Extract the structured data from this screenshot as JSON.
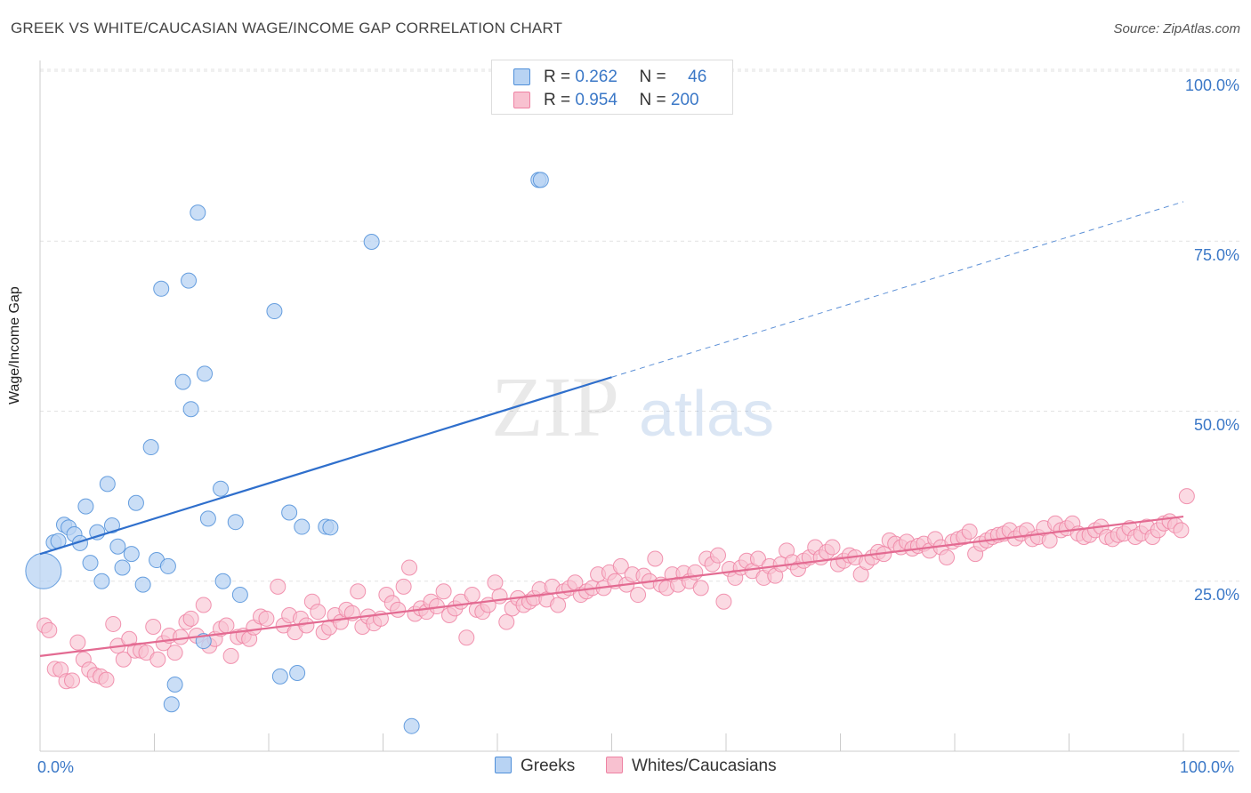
{
  "header": {
    "title": "GREEK VS WHITE/CAUCASIAN WAGE/INCOME GAP CORRELATION CHART",
    "source": "Source: ZipAtlas.com"
  },
  "watermark": {
    "zip": "ZIP",
    "atlas": "atlas"
  },
  "legend": {
    "r_label": "R =",
    "n_label": "N =",
    "rows": [
      {
        "r": "0.262",
        "n": "46",
        "color": "#4f8fd9",
        "fill": "#b8d3f3"
      },
      {
        "r": "0.954",
        "n": "200",
        "color": "#ee82a3",
        "fill": "#f8c1d0"
      }
    ]
  },
  "bottom_legend": [
    {
      "label": "Greeks",
      "color": "#4f8fd9",
      "fill": "#b8d3f3"
    },
    {
      "label": "Whites/Caucasians",
      "color": "#ee82a3",
      "fill": "#f8c1d0"
    }
  ],
  "chart_data": {
    "type": "scatter",
    "title": "GREEK VS WHITE/CAUCASIAN WAGE/INCOME GAP CORRELATION CHART",
    "xlabel": "",
    "ylabel": "Wage/Income Gap",
    "xlim": [
      0,
      100
    ],
    "ylim": [
      0,
      100
    ],
    "x_tick_labels": [
      "0.0%",
      "100.0%"
    ],
    "y_tick_labels": [
      "25.0%",
      "50.0%",
      "75.0%",
      "100.0%"
    ],
    "y_ticks": [
      25,
      50,
      75,
      100
    ],
    "grid": "horizontal dashed",
    "legend_position": "top-center",
    "series": [
      {
        "name": "Greeks",
        "color": "#4f8fd9",
        "fill": "#b8d3f3",
        "r": 0.262,
        "n": 46,
        "trend": {
          "x": [
            0,
            50
          ],
          "y": [
            29.0,
            55.0
          ],
          "dashed_to": [
            100,
            80.8
          ]
        },
        "points": [
          [
            0.3,
            26.5
          ],
          [
            1.2,
            30.7
          ],
          [
            1.6,
            30.9
          ],
          [
            2.1,
            33.3
          ],
          [
            2.5,
            32.9
          ],
          [
            3.0,
            31.9
          ],
          [
            3.5,
            30.6
          ],
          [
            4.0,
            36.0
          ],
          [
            4.4,
            27.7
          ],
          [
            5.0,
            32.2
          ],
          [
            5.4,
            25.0
          ],
          [
            5.9,
            39.3
          ],
          [
            6.3,
            33.2
          ],
          [
            6.8,
            30.1
          ],
          [
            7.2,
            27.0
          ],
          [
            8.0,
            29.0
          ],
          [
            8.4,
            36.5
          ],
          [
            9.0,
            24.5
          ],
          [
            9.7,
            44.7
          ],
          [
            10.2,
            28.1
          ],
          [
            10.6,
            68.0
          ],
          [
            11.2,
            27.2
          ],
          [
            11.8,
            9.8
          ],
          [
            11.5,
            6.9
          ],
          [
            12.5,
            54.3
          ],
          [
            13.0,
            69.2
          ],
          [
            13.2,
            50.3
          ],
          [
            13.8,
            79.2
          ],
          [
            14.3,
            16.2
          ],
          [
            14.4,
            55.5
          ],
          [
            14.7,
            34.2
          ],
          [
            15.8,
            38.6
          ],
          [
            16.0,
            25.0
          ],
          [
            17.1,
            33.7
          ],
          [
            17.5,
            23.0
          ],
          [
            20.5,
            64.7
          ],
          [
            21.0,
            11.0
          ],
          [
            21.8,
            35.1
          ],
          [
            22.5,
            11.5
          ],
          [
            22.9,
            33.0
          ],
          [
            25.0,
            33.0
          ],
          [
            25.4,
            32.9
          ],
          [
            29.0,
            74.9
          ],
          [
            32.5,
            3.7
          ],
          [
            43.6,
            84.0
          ],
          [
            43.8,
            84.0
          ]
        ]
      },
      {
        "name": "Whites/Caucasians",
        "color": "#ee82a3",
        "fill": "#f8c1d0",
        "r": 0.954,
        "n": 200,
        "trend": {
          "x": [
            0,
            100
          ],
          "y": [
            14.0,
            34.5
          ]
        },
        "points": [
          [
            0.4,
            18.5
          ],
          [
            0.8,
            17.8
          ],
          [
            1.3,
            12.1
          ],
          [
            1.8,
            12.0
          ],
          [
            2.3,
            10.3
          ],
          [
            2.8,
            10.4
          ],
          [
            3.3,
            16.0
          ],
          [
            3.8,
            13.5
          ],
          [
            4.3,
            12.0
          ],
          [
            4.8,
            11.2
          ],
          [
            5.3,
            11.0
          ],
          [
            5.8,
            10.5
          ],
          [
            6.4,
            18.7
          ],
          [
            6.8,
            15.5
          ],
          [
            7.3,
            13.5
          ],
          [
            7.8,
            16.5
          ],
          [
            8.3,
            14.8
          ],
          [
            8.8,
            14.8
          ],
          [
            9.3,
            14.5
          ],
          [
            9.9,
            18.3
          ],
          [
            10.3,
            13.5
          ],
          [
            10.8,
            15.9
          ],
          [
            11.3,
            17.0
          ],
          [
            11.8,
            14.5
          ],
          [
            12.3,
            16.8
          ],
          [
            12.8,
            19.0
          ],
          [
            13.2,
            19.5
          ],
          [
            13.7,
            17.0
          ],
          [
            14.3,
            21.5
          ],
          [
            14.8,
            15.5
          ],
          [
            15.3,
            16.5
          ],
          [
            15.8,
            18.0
          ],
          [
            16.3,
            18.5
          ],
          [
            16.7,
            14.0
          ],
          [
            17.3,
            16.8
          ],
          [
            17.8,
            17.0
          ],
          [
            18.3,
            16.5
          ],
          [
            18.7,
            18.2
          ],
          [
            19.3,
            19.8
          ],
          [
            19.8,
            19.5
          ],
          [
            20.8,
            24.2
          ],
          [
            21.3,
            18.5
          ],
          [
            21.8,
            20.0
          ],
          [
            22.3,
            17.5
          ],
          [
            22.8,
            19.5
          ],
          [
            23.3,
            18.5
          ],
          [
            23.8,
            22.0
          ],
          [
            24.3,
            20.5
          ],
          [
            24.8,
            17.5
          ],
          [
            25.3,
            18.2
          ],
          [
            25.8,
            20.0
          ],
          [
            26.3,
            19.0
          ],
          [
            26.8,
            20.8
          ],
          [
            27.3,
            20.3
          ],
          [
            27.8,
            23.5
          ],
          [
            28.2,
            18.3
          ],
          [
            28.7,
            19.8
          ],
          [
            29.2,
            18.8
          ],
          [
            29.8,
            19.5
          ],
          [
            30.3,
            23.0
          ],
          [
            30.8,
            21.8
          ],
          [
            31.3,
            20.8
          ],
          [
            31.8,
            24.2
          ],
          [
            32.3,
            27.0
          ],
          [
            32.8,
            20.2
          ],
          [
            33.3,
            21.0
          ],
          [
            33.8,
            20.5
          ],
          [
            34.2,
            22.0
          ],
          [
            34.7,
            21.3
          ],
          [
            35.3,
            23.5
          ],
          [
            35.8,
            20.0
          ],
          [
            36.3,
            21.0
          ],
          [
            36.8,
            22.0
          ],
          [
            37.3,
            16.7
          ],
          [
            37.8,
            23.0
          ],
          [
            38.2,
            20.8
          ],
          [
            38.7,
            20.5
          ],
          [
            39.2,
            21.5
          ],
          [
            39.8,
            24.8
          ],
          [
            40.2,
            22.8
          ],
          [
            40.8,
            19.0
          ],
          [
            41.3,
            21.0
          ],
          [
            41.8,
            22.5
          ],
          [
            42.3,
            21.5
          ],
          [
            42.8,
            22.0
          ],
          [
            43.2,
            22.5
          ],
          [
            43.7,
            23.8
          ],
          [
            44.3,
            22.3
          ],
          [
            44.8,
            24.2
          ],
          [
            45.3,
            21.5
          ],
          [
            45.8,
            23.5
          ],
          [
            46.3,
            24.0
          ],
          [
            46.8,
            24.8
          ],
          [
            47.3,
            23.0
          ],
          [
            47.8,
            23.5
          ],
          [
            48.3,
            24.0
          ],
          [
            48.8,
            26.0
          ],
          [
            49.3,
            24.0
          ],
          [
            49.8,
            26.3
          ],
          [
            50.3,
            25.0
          ],
          [
            50.8,
            27.2
          ],
          [
            51.3,
            24.5
          ],
          [
            51.8,
            26.0
          ],
          [
            52.3,
            23.0
          ],
          [
            52.8,
            25.8
          ],
          [
            53.3,
            25.0
          ],
          [
            53.8,
            28.3
          ],
          [
            54.3,
            24.5
          ],
          [
            54.8,
            24.0
          ],
          [
            55.3,
            26.0
          ],
          [
            55.8,
            24.5
          ],
          [
            56.3,
            26.2
          ],
          [
            56.8,
            25.0
          ],
          [
            57.3,
            26.3
          ],
          [
            57.8,
            24.0
          ],
          [
            58.3,
            28.3
          ],
          [
            58.8,
            27.5
          ],
          [
            59.3,
            28.8
          ],
          [
            59.8,
            22.0
          ],
          [
            60.3,
            26.8
          ],
          [
            60.8,
            25.5
          ],
          [
            61.3,
            27.0
          ],
          [
            61.8,
            28.0
          ],
          [
            62.3,
            26.5
          ],
          [
            62.8,
            28.3
          ],
          [
            63.3,
            25.5
          ],
          [
            63.8,
            27.2
          ],
          [
            64.3,
            25.8
          ],
          [
            64.8,
            27.5
          ],
          [
            65.3,
            29.5
          ],
          [
            65.8,
            27.8
          ],
          [
            66.3,
            26.8
          ],
          [
            66.8,
            28.0
          ],
          [
            67.3,
            28.5
          ],
          [
            67.8,
            30.0
          ],
          [
            68.3,
            28.5
          ],
          [
            68.8,
            29.3
          ],
          [
            69.3,
            30.0
          ],
          [
            69.8,
            27.5
          ],
          [
            70.3,
            28.0
          ],
          [
            70.8,
            28.8
          ],
          [
            71.3,
            28.5
          ],
          [
            71.8,
            26.0
          ],
          [
            72.3,
            27.8
          ],
          [
            72.8,
            28.5
          ],
          [
            73.3,
            29.3
          ],
          [
            73.8,
            29.0
          ],
          [
            74.3,
            31.0
          ],
          [
            74.8,
            30.5
          ],
          [
            75.3,
            30.0
          ],
          [
            75.8,
            30.8
          ],
          [
            76.3,
            29.8
          ],
          [
            76.8,
            30.2
          ],
          [
            77.3,
            30.5
          ],
          [
            77.8,
            29.5
          ],
          [
            78.3,
            31.2
          ],
          [
            78.8,
            30.0
          ],
          [
            79.3,
            28.5
          ],
          [
            79.8,
            30.8
          ],
          [
            80.3,
            31.2
          ],
          [
            80.8,
            31.5
          ],
          [
            81.3,
            32.3
          ],
          [
            81.8,
            29.0
          ],
          [
            82.3,
            30.5
          ],
          [
            82.8,
            31.0
          ],
          [
            83.3,
            31.5
          ],
          [
            83.8,
            31.8
          ],
          [
            84.3,
            32.0
          ],
          [
            84.8,
            32.5
          ],
          [
            85.3,
            31.3
          ],
          [
            85.8,
            32.0
          ],
          [
            86.3,
            32.5
          ],
          [
            86.8,
            31.2
          ],
          [
            87.3,
            31.5
          ],
          [
            87.8,
            32.8
          ],
          [
            88.3,
            31.0
          ],
          [
            88.8,
            33.5
          ],
          [
            89.3,
            32.5
          ],
          [
            89.8,
            32.8
          ],
          [
            90.3,
            33.5
          ],
          [
            90.8,
            32.0
          ],
          [
            91.3,
            31.5
          ],
          [
            91.8,
            31.8
          ],
          [
            92.3,
            32.5
          ],
          [
            92.8,
            33.0
          ],
          [
            93.3,
            31.5
          ],
          [
            93.8,
            31.2
          ],
          [
            94.3,
            31.8
          ],
          [
            94.8,
            32.0
          ],
          [
            95.3,
            32.8
          ],
          [
            95.8,
            31.5
          ],
          [
            96.3,
            32.0
          ],
          [
            96.8,
            33.0
          ],
          [
            97.3,
            31.5
          ],
          [
            97.8,
            32.5
          ],
          [
            98.3,
            33.5
          ],
          [
            98.8,
            33.8
          ],
          [
            99.3,
            33.2
          ],
          [
            99.8,
            32.5
          ],
          [
            100.3,
            37.5
          ]
        ]
      }
    ]
  }
}
